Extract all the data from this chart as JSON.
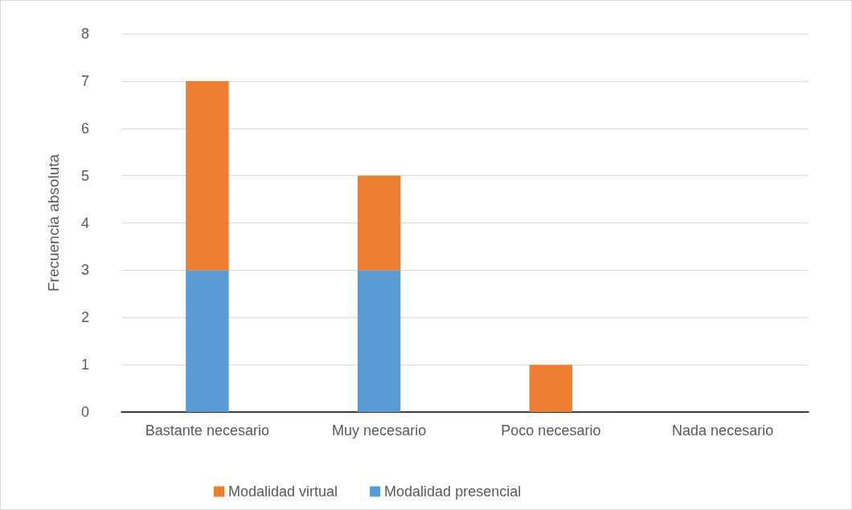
{
  "chart_data": {
    "type": "bar",
    "stacked": true,
    "ylabel": "Frecuencia absoluta",
    "categories": [
      "Bastante necesario",
      "Muy necesario",
      "Poco necesario",
      "Nada necesario"
    ],
    "series": [
      {
        "name": "Modalidad presencial",
        "color": "#5b9bd5",
        "values": [
          3,
          3,
          0,
          0
        ]
      },
      {
        "name": "Modalidad virtual",
        "color": "#ed7d31",
        "values": [
          4,
          2,
          1,
          0
        ]
      }
    ],
    "ylim": [
      0,
      8
    ],
    "yticks": [
      0,
      1,
      2,
      3,
      4,
      5,
      6,
      7,
      8
    ],
    "grid": "y",
    "legend": "bottom"
  }
}
